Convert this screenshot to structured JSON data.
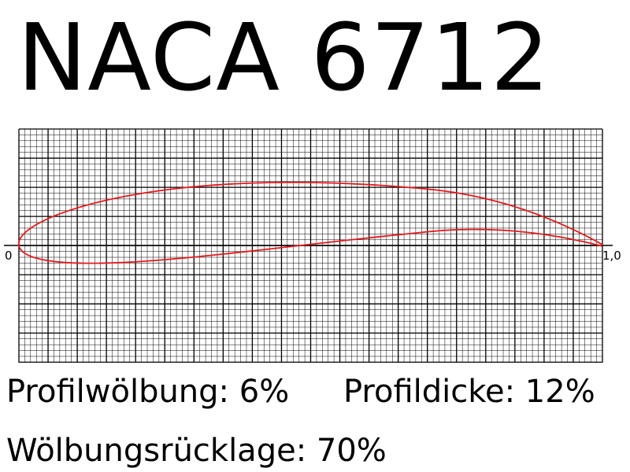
{
  "title": "NACA 6712",
  "stats": {
    "camber": "Profilwölbung: 6%",
    "thickness": "Profildicke: 12%",
    "camber_position": "Wölbungsrücklage: 70%"
  },
  "axis": {
    "x_start_label": "0",
    "x_end_label": "1,0"
  },
  "airfoil": {
    "max_camber": 0.06,
    "camber_position": 0.7,
    "thickness": 0.12,
    "color": "#e41a1c"
  },
  "grid": {
    "x_range": [
      0,
      1.0
    ],
    "y_range": [
      -0.2,
      0.2
    ],
    "minor_divisions": 100,
    "major_every": 5,
    "line_color": "#000000"
  }
}
